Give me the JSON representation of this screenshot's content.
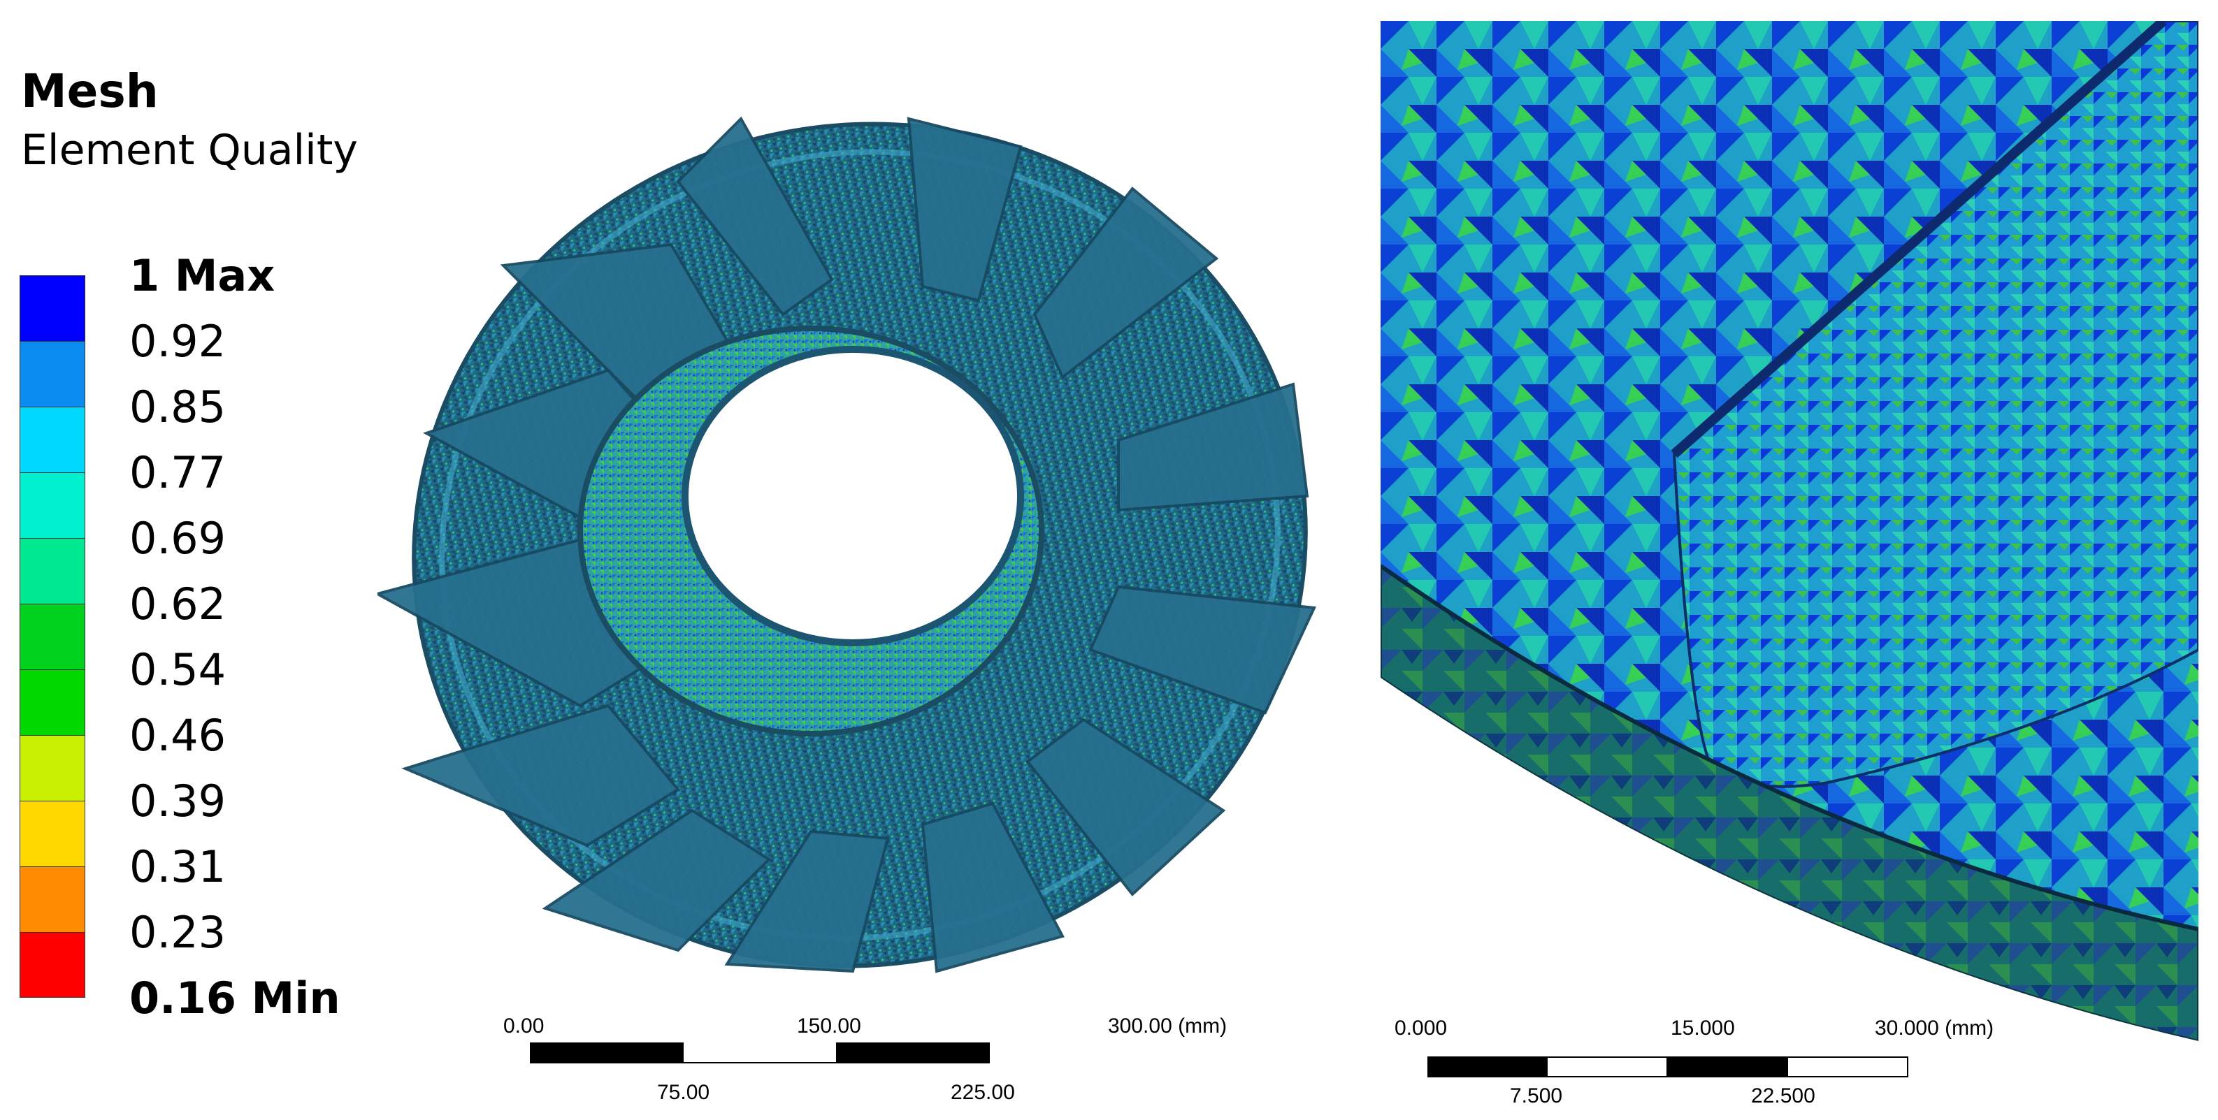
{
  "legend": {
    "title": "Mesh",
    "subtitle": "Element Quality",
    "colors": [
      "#0000ff",
      "#0a8cf0",
      "#00d8ff",
      "#00f0d0",
      "#00e890",
      "#00d21e",
      "#00d800",
      "#c8f000",
      "#ffd800",
      "#ff8c00",
      "#ff0000"
    ],
    "ticks": [
      "1 Max",
      "0.92",
      "0.85",
      "0.77",
      "0.69",
      "0.62",
      "0.54",
      "0.46",
      "0.39",
      "0.31",
      "0.23",
      "0.16 Min"
    ]
  },
  "scale_left": {
    "top_labels": [
      "0.00",
      "150.00",
      "300.00 (mm)"
    ],
    "bottom_labels": [
      "75.00",
      "225.00"
    ]
  },
  "scale_right": {
    "top_labels": [
      "0.000",
      "15.000",
      "30.000 (mm)"
    ],
    "bottom_labels": [
      "7.500",
      "22.500"
    ]
  }
}
